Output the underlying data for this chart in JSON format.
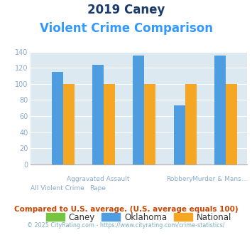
{
  "title_line1": "2019 Caney",
  "title_line2": "Violent Crime Comparison",
  "title_color1": "#1a3a6b",
  "title_color2": "#3399ff",
  "title_fs1": 12,
  "title_fs2": 12,
  "caney_color": "#76c442",
  "oklahoma_color": "#4d9de0",
  "national_color": "#f5a623",
  "bg_color": "#dce9f0",
  "ylim": [
    0,
    140
  ],
  "yticks": [
    0,
    20,
    40,
    60,
    80,
    100,
    120,
    140
  ],
  "groups": 5,
  "group_labels_top": [
    "",
    "Aggravated Assault",
    "",
    "Robbery",
    "Murder & Mans..."
  ],
  "group_labels_bot": [
    "All Violent Crime",
    "Rape",
    "",
    "",
    ""
  ],
  "oklahoma_vals": [
    115,
    124,
    135,
    73,
    135
  ],
  "national_vals": [
    100,
    100,
    100,
    100,
    100
  ],
  "caney_vals": [
    0,
    0,
    0,
    0,
    0
  ],
  "footnote1": "Compared to U.S. average. (U.S. average equals 100)",
  "footnote2": "© 2025 CityRating.com - https://www.cityrating.com/crime-statistics/",
  "footnote1_color": "#cc4400",
  "footnote2_color": "#7aaabb",
  "tick_color": "#8aaacc",
  "grid_color": "#ffffff",
  "bar_width": 0.28
}
